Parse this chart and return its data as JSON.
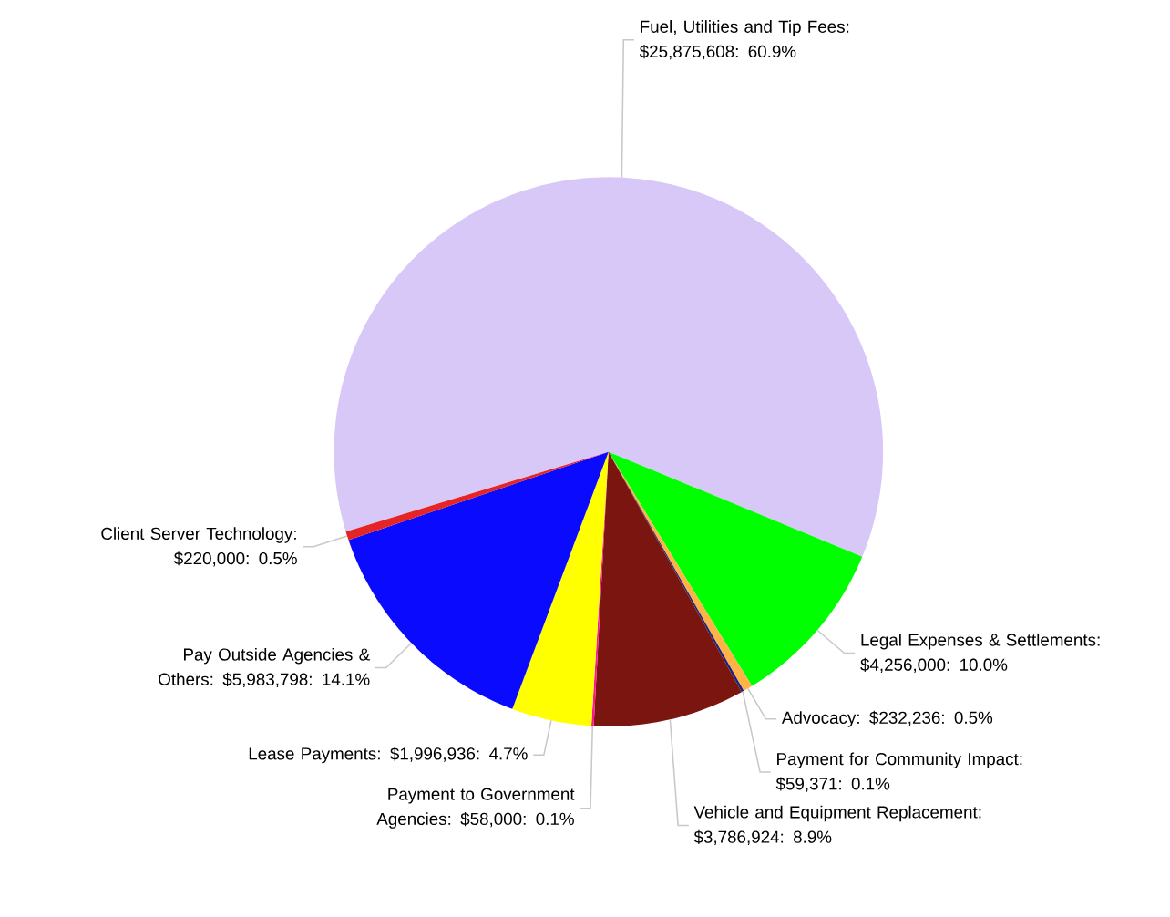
{
  "chart_data": {
    "type": "pie",
    "categories": [
      "Fuel, Utilities and Tip Fees",
      "Legal Expenses & Settlements",
      "Advocacy",
      "Payment for Community Impact",
      "Vehicle and Equipment Replacement",
      "Payment to Government Agencies",
      "Lease Payments",
      "Pay Outside Agencies & Others",
      "Client Server Technology"
    ],
    "values": [
      25875608,
      4256000,
      232236,
      59371,
      3786924,
      58000,
      1996936,
      5983798,
      220000
    ],
    "value_labels": [
      ":  $25,875,608:  60.9%",
      ":  $4,256,000:  10.0%",
      ":  $232,236:  0.5%",
      ":  $59,371:  0.1%",
      ":  $3,786,924:  8.9%",
      ":  $58,000:  0.1%",
      ":  $1,996,936:  4.7%",
      ":  $5,983,798:  14.1%",
      ":  $220,000:  0.5%"
    ],
    "colors": [
      "#d8c8f8",
      "#00ff00",
      "#ffb347",
      "#1a237e",
      "#7b1510",
      "#ff1493",
      "#ffff00",
      "#0a0aff",
      "#e52525"
    ]
  }
}
